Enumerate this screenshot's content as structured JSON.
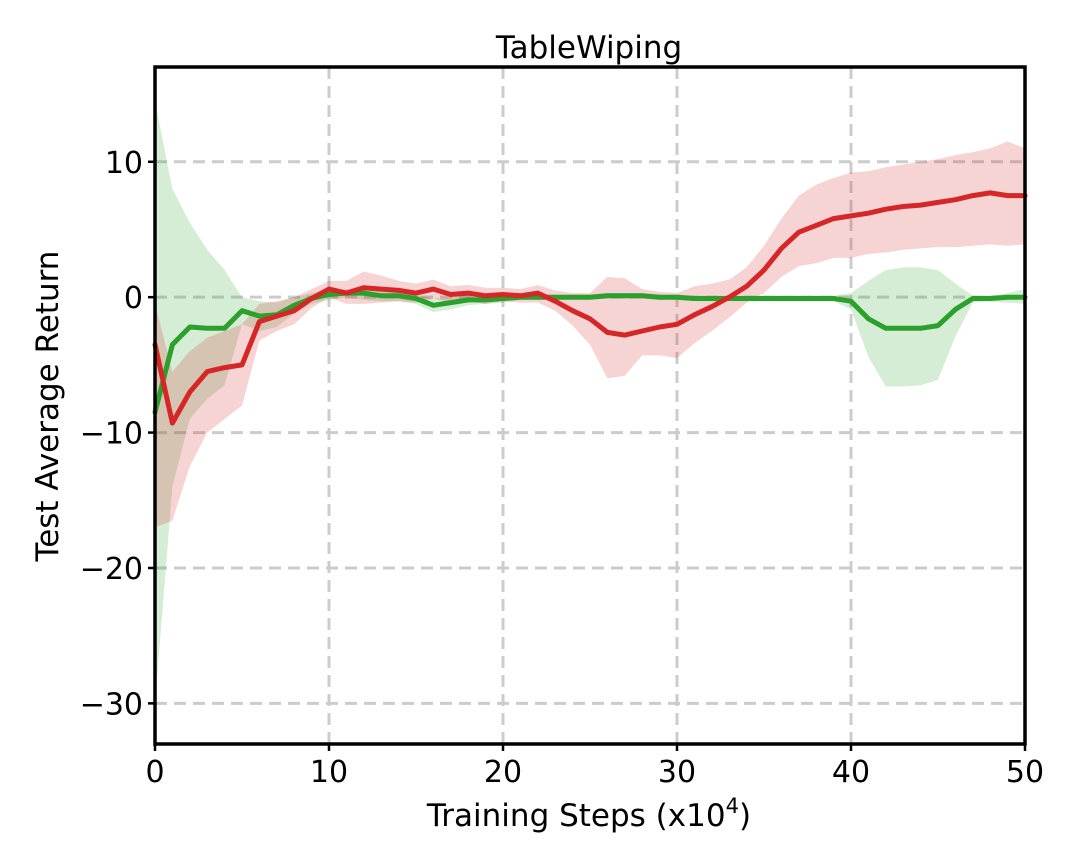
{
  "chart_data": {
    "type": "line",
    "title": "TableWiping",
    "xlabel_main": "Training Steps (x10",
    "xlabel_sup": "4",
    "xlabel_close": ")",
    "ylabel": "Test Average Return",
    "xlim": [
      0,
      50
    ],
    "ylim": [
      -33,
      17
    ],
    "xticks": [
      0,
      10,
      20,
      30,
      40,
      50
    ],
    "xtick_labels": [
      "0",
      "10",
      "20",
      "30",
      "40",
      "50"
    ],
    "yticks": [
      10,
      0,
      -10,
      -20,
      -30
    ],
    "ytick_labels": [
      "10",
      "0",
      "−10",
      "−20",
      "−30"
    ],
    "grid": true,
    "series": [
      {
        "color": "#2ca02c",
        "fill_color": "#2ca02c",
        "x": [
          0,
          1,
          2,
          3,
          4,
          5,
          6,
          7,
          8,
          9,
          10,
          11,
          12,
          13,
          14,
          15,
          16,
          17,
          18,
          19,
          20,
          21,
          22,
          23,
          24,
          25,
          26,
          27,
          28,
          29,
          30,
          31,
          32,
          33,
          34,
          35,
          36,
          37,
          38,
          39,
          40,
          41,
          42,
          43,
          44,
          45,
          46,
          47,
          48,
          49,
          50
        ],
        "y": [
          -8.5,
          -3.5,
          -2.2,
          -2.3,
          -2.3,
          -1.0,
          -1.4,
          -1.3,
          -0.6,
          -0.1,
          0.2,
          0.3,
          0.3,
          0.1,
          0.1,
          -0.1,
          -0.6,
          -0.4,
          -0.2,
          -0.2,
          -0.1,
          0.0,
          0.0,
          0.0,
          0.0,
          0.0,
          0.1,
          0.1,
          0.1,
          0.0,
          0.0,
          -0.1,
          -0.1,
          -0.1,
          -0.1,
          -0.1,
          -0.1,
          -0.1,
          -0.1,
          -0.1,
          -0.3,
          -1.6,
          -2.3,
          -2.3,
          -2.3,
          -2.1,
          -0.9,
          -0.1,
          -0.1,
          0.0,
          0.0
        ],
        "upper": [
          14.5,
          8.0,
          5.5,
          3.5,
          2.0,
          0.0,
          -0.3,
          -0.4,
          0.0,
          0.3,
          0.5,
          0.6,
          0.6,
          0.4,
          0.4,
          0.2,
          -0.1,
          0.0,
          0.1,
          0.1,
          0.1,
          0.2,
          0.2,
          0.2,
          0.2,
          0.2,
          0.3,
          0.3,
          0.3,
          0.2,
          0.2,
          0.1,
          0.1,
          0.1,
          0.1,
          0.1,
          0.1,
          0.1,
          0.1,
          0.1,
          0.3,
          1.2,
          2.0,
          2.2,
          2.2,
          2.0,
          1.0,
          0.1,
          0.1,
          0.3,
          0.6
        ],
        "lower": [
          -30.0,
          -14.0,
          -9.0,
          -7.5,
          -6.5,
          -2.0,
          -2.5,
          -2.2,
          -1.2,
          -0.5,
          -0.2,
          0.0,
          -0.2,
          -0.3,
          -0.3,
          -0.5,
          -1.1,
          -0.9,
          -0.6,
          -0.5,
          -0.4,
          -0.2,
          -0.2,
          -0.2,
          -0.2,
          -0.2,
          -0.1,
          -0.1,
          -0.1,
          -0.2,
          -0.2,
          -0.3,
          -0.3,
          -0.3,
          -0.3,
          -0.3,
          -0.3,
          -0.3,
          -0.3,
          -0.3,
          -0.9,
          -4.4,
          -6.6,
          -6.6,
          -6.5,
          -6.1,
          -2.9,
          -0.4,
          -0.3,
          -0.4,
          -0.5
        ]
      },
      {
        "color": "#d62728",
        "fill_color": "#d62728",
        "x": [
          0,
          1,
          2,
          3,
          4,
          5,
          6,
          7,
          8,
          9,
          10,
          11,
          12,
          13,
          14,
          15,
          16,
          17,
          18,
          19,
          20,
          21,
          22,
          23,
          24,
          25,
          26,
          27,
          28,
          29,
          30,
          31,
          32,
          33,
          34,
          35,
          36,
          37,
          38,
          39,
          40,
          41,
          42,
          43,
          44,
          45,
          46,
          47,
          48,
          49,
          50
        ],
        "y": [
          -3.5,
          -9.3,
          -7.0,
          -5.5,
          -5.2,
          -5.0,
          -1.8,
          -1.4,
          -1.0,
          -0.1,
          0.6,
          0.3,
          0.7,
          0.6,
          0.5,
          0.3,
          0.6,
          0.2,
          0.3,
          0.1,
          0.2,
          0.1,
          0.3,
          -0.3,
          -1.0,
          -1.6,
          -2.6,
          -2.8,
          -2.5,
          -2.2,
          -2.0,
          -1.3,
          -0.7,
          0.0,
          0.8,
          2.0,
          3.6,
          4.8,
          5.3,
          5.8,
          6.0,
          6.2,
          6.5,
          6.7,
          6.8,
          7.0,
          7.2,
          7.5,
          7.7,
          7.5,
          7.5
        ],
        "upper": [
          -0.5,
          -5.5,
          -4.0,
          -3.0,
          -2.5,
          -2.0,
          -0.5,
          -0.3,
          0.0,
          0.6,
          1.2,
          1.2,
          1.9,
          1.6,
          1.2,
          1.0,
          1.3,
          0.8,
          0.9,
          0.7,
          0.7,
          0.6,
          0.9,
          0.5,
          0.3,
          0.3,
          1.5,
          1.4,
          0.6,
          0.4,
          0.3,
          0.8,
          1.0,
          1.3,
          2.2,
          3.8,
          5.8,
          7.5,
          8.3,
          8.8,
          9.2,
          9.3,
          9.6,
          9.8,
          10.0,
          10.2,
          10.5,
          10.7,
          11.0,
          11.5,
          11.0
        ],
        "lower": [
          -17.0,
          -16.5,
          -12.5,
          -10.0,
          -9.0,
          -8.0,
          -3.2,
          -2.5,
          -2.0,
          -0.8,
          0.0,
          -0.5,
          -0.5,
          -0.4,
          -0.3,
          -0.4,
          -0.1,
          -0.4,
          -0.3,
          -0.5,
          -0.3,
          -0.4,
          -0.4,
          -1.0,
          -2.1,
          -3.5,
          -6.0,
          -5.8,
          -4.3,
          -4.3,
          -4.5,
          -3.4,
          -2.5,
          -1.5,
          -0.4,
          0.3,
          1.5,
          2.3,
          2.5,
          2.9,
          2.9,
          3.2,
          3.3,
          3.5,
          3.6,
          3.7,
          3.7,
          3.8,
          3.9,
          3.8,
          3.9
        ]
      }
    ]
  }
}
